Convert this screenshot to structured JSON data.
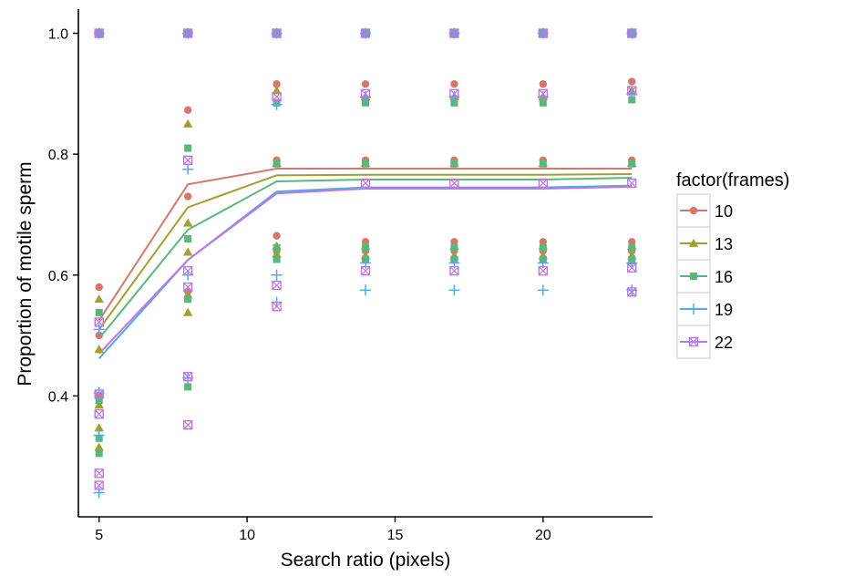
{
  "chart_data": {
    "type": "scatter",
    "title": "",
    "xlabel": "Search ratio (pixels)",
    "ylabel": "Proportion of motile sperm",
    "xlim": [
      4.3,
      23.7
    ],
    "ylim": [
      0.2,
      1.04
    ],
    "x_ticks": [
      5,
      10,
      15,
      20
    ],
    "x_tick_labels": [
      "5",
      "10",
      "15",
      "20"
    ],
    "y_ticks": [
      0.4,
      0.6,
      0.8,
      1.0
    ],
    "y_tick_labels": [
      "0.4",
      "0.6",
      "0.8",
      "1.0"
    ],
    "grid": false,
    "legend": {
      "title": "factor(frames)",
      "placement": "right"
    },
    "x": [
      5,
      8,
      11,
      14,
      17,
      20,
      23
    ],
    "series": [
      {
        "name": "10",
        "color": "#D4776D",
        "marker": "circle",
        "trend": [
          0.525,
          0.75,
          0.776,
          0.776,
          0.776,
          0.776,
          0.776
        ],
        "points": [
          [
            5,
            1.0
          ],
          [
            5,
            0.58
          ],
          [
            5,
            0.5
          ],
          [
            5,
            0.4
          ],
          [
            8,
            1.0
          ],
          [
            8,
            0.873
          ],
          [
            8,
            0.73
          ],
          [
            8,
            0.573
          ],
          [
            11,
            1.0
          ],
          [
            11,
            0.916
          ],
          [
            11,
            0.79
          ],
          [
            11,
            0.665
          ],
          [
            11,
            0.64
          ],
          [
            14,
            1.0
          ],
          [
            14,
            0.916
          ],
          [
            14,
            0.79
          ],
          [
            14,
            0.655
          ],
          [
            14,
            0.64
          ],
          [
            17,
            1.0
          ],
          [
            17,
            0.916
          ],
          [
            17,
            0.79
          ],
          [
            17,
            0.655
          ],
          [
            17,
            0.64
          ],
          [
            20,
            1.0
          ],
          [
            20,
            0.916
          ],
          [
            20,
            0.79
          ],
          [
            20,
            0.655
          ],
          [
            20,
            0.64
          ],
          [
            23,
            1.0
          ],
          [
            23,
            0.92
          ],
          [
            23,
            0.79
          ],
          [
            23,
            0.655
          ],
          [
            23,
            0.64
          ]
        ]
      },
      {
        "name": "13",
        "color": "#A39E32",
        "marker": "triangle",
        "trend": [
          0.51,
          0.712,
          0.765,
          0.766,
          0.766,
          0.766,
          0.767
        ],
        "points": [
          [
            5,
            1.0
          ],
          [
            5,
            0.56
          ],
          [
            5,
            0.477
          ],
          [
            5,
            0.385
          ],
          [
            5,
            0.347
          ],
          [
            5,
            0.315
          ],
          [
            8,
            1.0
          ],
          [
            8,
            0.85
          ],
          [
            8,
            0.686
          ],
          [
            8,
            0.638
          ],
          [
            8,
            0.567
          ],
          [
            8,
            0.538
          ],
          [
            11,
            1.0
          ],
          [
            11,
            0.905
          ],
          [
            11,
            0.785
          ],
          [
            11,
            0.648
          ],
          [
            11,
            0.635
          ],
          [
            14,
            1.0
          ],
          [
            14,
            0.895
          ],
          [
            14,
            0.785
          ],
          [
            14,
            0.648
          ],
          [
            14,
            0.632
          ],
          [
            17,
            1.0
          ],
          [
            17,
            0.895
          ],
          [
            17,
            0.785
          ],
          [
            17,
            0.648
          ],
          [
            17,
            0.632
          ],
          [
            20,
            1.0
          ],
          [
            20,
            0.895
          ],
          [
            20,
            0.785
          ],
          [
            20,
            0.648
          ],
          [
            20,
            0.632
          ],
          [
            23,
            1.0
          ],
          [
            23,
            0.905
          ],
          [
            23,
            0.785
          ],
          [
            23,
            0.648
          ],
          [
            23,
            0.632
          ]
        ]
      },
      {
        "name": "16",
        "color": "#5CB67B",
        "marker": "square",
        "trend": [
          0.495,
          0.675,
          0.755,
          0.758,
          0.758,
          0.758,
          0.761
        ],
        "points": [
          [
            5,
            1.0
          ],
          [
            5,
            0.538
          ],
          [
            5,
            0.393
          ],
          [
            5,
            0.33
          ],
          [
            5,
            0.305
          ],
          [
            8,
            1.0
          ],
          [
            8,
            0.81
          ],
          [
            8,
            0.66
          ],
          [
            8,
            0.56
          ],
          [
            8,
            0.415
          ],
          [
            11,
            1.0
          ],
          [
            11,
            0.885
          ],
          [
            11,
            0.784
          ],
          [
            11,
            0.645
          ],
          [
            11,
            0.626
          ],
          [
            14,
            1.0
          ],
          [
            14,
            0.885
          ],
          [
            14,
            0.784
          ],
          [
            14,
            0.645
          ],
          [
            14,
            0.626
          ],
          [
            17,
            1.0
          ],
          [
            17,
            0.885
          ],
          [
            17,
            0.784
          ],
          [
            17,
            0.645
          ],
          [
            17,
            0.626
          ],
          [
            20,
            1.0
          ],
          [
            20,
            0.885
          ],
          [
            20,
            0.784
          ],
          [
            20,
            0.645
          ],
          [
            20,
            0.626
          ],
          [
            23,
            1.0
          ],
          [
            23,
            0.89
          ],
          [
            23,
            0.784
          ],
          [
            23,
            0.645
          ],
          [
            23,
            0.626
          ]
        ]
      },
      {
        "name": "19",
        "color": "#56A9E0",
        "marker": "plus",
        "trend": [
          0.462,
          0.625,
          0.738,
          0.745,
          0.745,
          0.745,
          0.748
        ],
        "points": [
          [
            5,
            1.0
          ],
          [
            5,
            0.51
          ],
          [
            5,
            0.405
          ],
          [
            5,
            0.335
          ],
          [
            5,
            0.24
          ],
          [
            8,
            1.0
          ],
          [
            8,
            0.775
          ],
          [
            8,
            0.6
          ],
          [
            8,
            0.43
          ],
          [
            11,
            1.0
          ],
          [
            11,
            0.882
          ],
          [
            11,
            0.6
          ],
          [
            11,
            0.555
          ],
          [
            14,
            1.0
          ],
          [
            14,
            0.895
          ],
          [
            14,
            0.62
          ],
          [
            14,
            0.575
          ],
          [
            17,
            1.0
          ],
          [
            17,
            0.895
          ],
          [
            17,
            0.62
          ],
          [
            17,
            0.575
          ],
          [
            20,
            1.0
          ],
          [
            20,
            0.895
          ],
          [
            20,
            0.62
          ],
          [
            20,
            0.575
          ],
          [
            23,
            1.0
          ],
          [
            23,
            0.9
          ],
          [
            23,
            0.62
          ],
          [
            23,
            0.575
          ]
        ]
      },
      {
        "name": "22",
        "color": "#BB7AE0",
        "marker": "boxx",
        "trend": [
          0.47,
          0.625,
          0.735,
          0.743,
          0.743,
          0.743,
          0.746
        ],
        "points": [
          [
            5,
            1.0
          ],
          [
            5,
            0.522
          ],
          [
            5,
            0.403
          ],
          [
            5,
            0.37
          ],
          [
            5,
            0.272
          ],
          [
            5,
            0.252
          ],
          [
            8,
            1.0
          ],
          [
            8,
            0.79
          ],
          [
            8,
            0.607
          ],
          [
            8,
            0.58
          ],
          [
            8,
            0.432
          ],
          [
            8,
            0.352
          ],
          [
            11,
            1.0
          ],
          [
            11,
            0.895
          ],
          [
            11,
            0.583
          ],
          [
            11,
            0.548
          ],
          [
            14,
            1.0
          ],
          [
            14,
            0.9
          ],
          [
            14,
            0.752
          ],
          [
            14,
            0.607
          ],
          [
            17,
            1.0
          ],
          [
            17,
            0.9
          ],
          [
            17,
            0.752
          ],
          [
            17,
            0.607
          ],
          [
            20,
            1.0
          ],
          [
            20,
            0.9
          ],
          [
            20,
            0.752
          ],
          [
            20,
            0.607
          ],
          [
            23,
            1.0
          ],
          [
            23,
            0.905
          ],
          [
            23,
            0.752
          ],
          [
            23,
            0.612
          ],
          [
            23,
            0.572
          ]
        ]
      }
    ]
  }
}
